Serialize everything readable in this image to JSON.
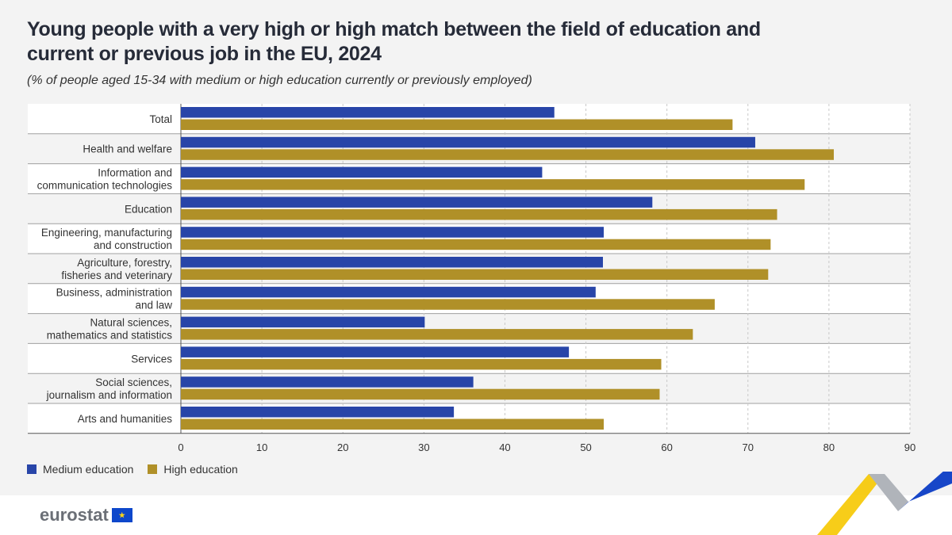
{
  "header": {
    "title": "Young people with a very high or high match between the field of education and current or previous job in the EU, 2024",
    "subtitle": "(% of people aged 15-34 with medium or high education currently or previously employed)"
  },
  "colors": {
    "medium": "#2845a8",
    "high": "#b09028"
  },
  "chart_data": {
    "type": "bar",
    "orientation": "horizontal",
    "categories": [
      "Total",
      "Health and welfare",
      "Information and communication technologies",
      "Education",
      "Engineering, manufacturing and construction",
      "Agriculture, forestry, fisheries and veterinary",
      "Business, administration and law",
      "Natural sciences, mathematics and statistics",
      "Services",
      "Social sciences, journalism and information",
      "Arts and humanities"
    ],
    "category_lines": [
      [
        "Total"
      ],
      [
        "Health and welfare"
      ],
      [
        "Information and",
        "communication technologies"
      ],
      [
        "Education"
      ],
      [
        "Engineering, manufacturing",
        "and construction"
      ],
      [
        "Agriculture, forestry,",
        "fisheries and veterinary"
      ],
      [
        "Business, administration",
        "and law"
      ],
      [
        "Natural sciences,",
        "mathematics and statistics"
      ],
      [
        "Services"
      ],
      [
        "Social sciences,",
        "journalism and information"
      ],
      [
        "Arts and humanities"
      ]
    ],
    "series": [
      {
        "name": "Medium education",
        "values": [
          46.1,
          70.9,
          44.6,
          58.2,
          52.2,
          52.1,
          51.2,
          30.1,
          47.9,
          36.1,
          33.7
        ]
      },
      {
        "name": "High education",
        "values": [
          68.1,
          80.6,
          77.0,
          73.6,
          72.8,
          72.5,
          65.9,
          63.2,
          59.3,
          59.1,
          52.2
        ]
      }
    ],
    "xlim": [
      0,
      90
    ],
    "xticks": [
      "0",
      "10",
      "20",
      "30",
      "40",
      "50",
      "60",
      "70",
      "80",
      "90"
    ],
    "grid": true,
    "legend_position": "bottom-left"
  },
  "footer": {
    "logo": "eurostat"
  }
}
